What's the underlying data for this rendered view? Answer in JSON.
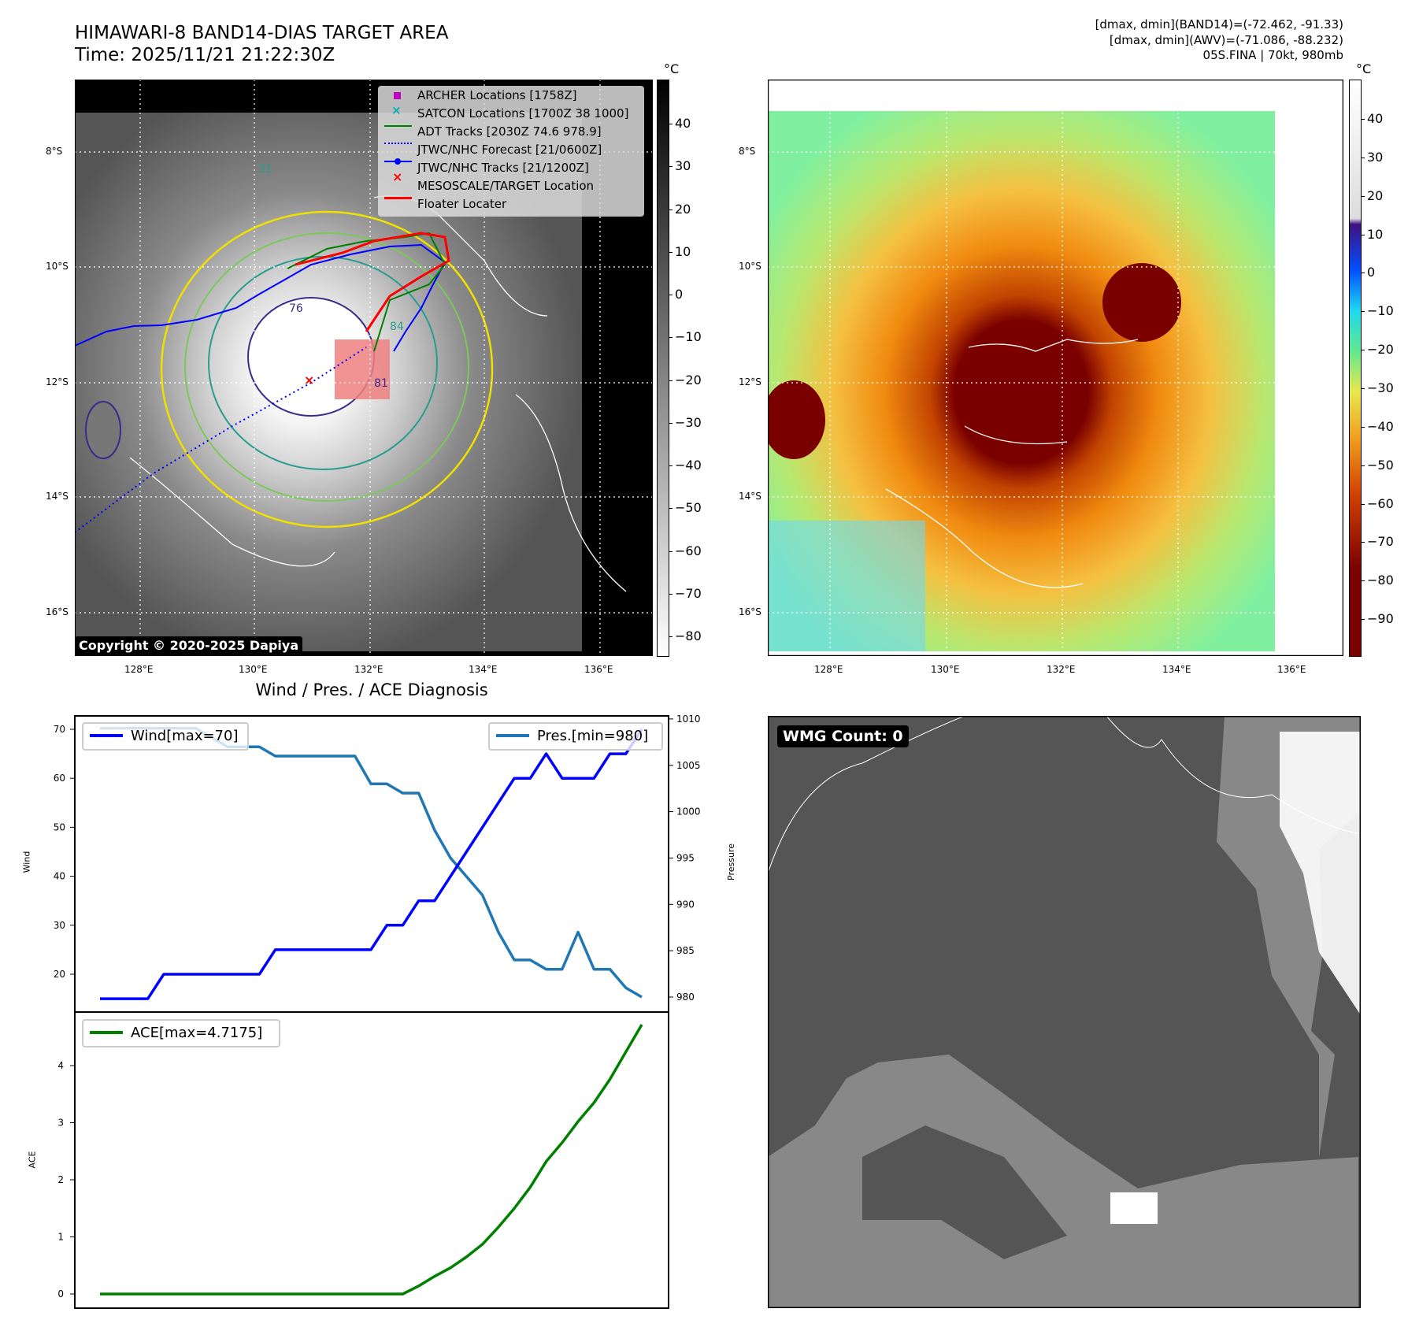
{
  "header": {
    "title": "HIMAWARI-8 BAND14-DIAS TARGET AREA",
    "time": "Time: 2025/11/21 21:22:30Z",
    "info_line1": "[dmax, dmin](BAND14)=(-72.462, -91.33)",
    "info_line2": "[dmax, dmin](AWV)=(-71.086, -88.232)",
    "info_line3": "05S.FINA | 70kt, 980mb"
  },
  "maps": {
    "lat_labels": [
      "8°S",
      "10°S",
      "12°S",
      "14°S",
      "16°S"
    ],
    "lon_labels": [
      "128°E",
      "130°E",
      "132°E",
      "134°E",
      "136°E"
    ],
    "unit": "°C",
    "left_colorbar_ticks": [
      "40",
      "30",
      "20",
      "10",
      "0",
      "−10",
      "−20",
      "−30",
      "−40",
      "−50",
      "−60",
      "−70",
      "−80"
    ],
    "right_colorbar_ticks": [
      "40",
      "30",
      "20",
      "10",
      "0",
      "−10",
      "−20",
      "−30",
      "−40",
      "−50",
      "−60",
      "−70",
      "−80",
      "−90"
    ],
    "copyright": "Copyright © 2020-2025 Dapiya",
    "contour_labels": [
      "76",
      "81",
      "84",
      "31"
    ],
    "legend": [
      {
        "label": "ARCHER Locations [1758Z]",
        "color": "#c000c0",
        "marker": "square"
      },
      {
        "label": "SATCON Locations [1700Z 38 1000]",
        "color": "#00c0c0",
        "marker": "x"
      },
      {
        "label": "ADT Tracks [2030Z 74.6 978.9]",
        "color": "#008000",
        "marker": "line"
      },
      {
        "label": "JTWC/NHC Forecast [21/0600Z]",
        "color": "#0000ff",
        "marker": "dotted"
      },
      {
        "label": "JTWC/NHC Tracks [21/1200Z]",
        "color": "#0000ff",
        "marker": "line-dot"
      },
      {
        "label": "MESOSCALE/TARGET Location",
        "color": "#ff0000",
        "marker": "x"
      },
      {
        "label": "Floater Locater",
        "color": "#ff0000",
        "marker": "line"
      }
    ]
  },
  "wmg": {
    "label": "WMG Count: 0"
  },
  "chart_data": {
    "type": "line",
    "title": "Wind / Pres. / ACE Diagnosis",
    "x": [
      0,
      1,
      2,
      3,
      4,
      5,
      6,
      7,
      8,
      9,
      10,
      11,
      12,
      13,
      14,
      15,
      16,
      17,
      18,
      19,
      20,
      21,
      22,
      23,
      24,
      25,
      26,
      27,
      28,
      29,
      30,
      31,
      32,
      33,
      34
    ],
    "series": [
      {
        "name": "Wind[max=70]",
        "axis": "wind",
        "color": "#0000ff",
        "values": [
          15,
          15,
          15,
          15,
          20,
          20,
          20,
          20,
          20,
          20,
          20,
          25,
          25,
          25,
          25,
          25,
          25,
          25,
          30,
          30,
          35,
          35,
          40,
          45,
          50,
          55,
          60,
          60,
          65,
          60,
          60,
          60,
          65,
          65,
          70
        ]
      },
      {
        "name": "Pres.[min=980]",
        "axis": "pressure",
        "color": "#1f77b4",
        "values": [
          1009,
          1009,
          1009,
          1009,
          1009,
          1009,
          1009,
          1008,
          1007,
          1007,
          1007,
          1006,
          1006,
          1006,
          1006,
          1006,
          1006,
          1003,
          1003,
          1002,
          1002,
          998,
          995,
          993,
          991,
          987,
          984,
          984,
          983,
          983,
          987,
          983,
          983,
          981,
          980
        ]
      },
      {
        "name": "ACE[max=4.7175]",
        "axis": "ace",
        "color": "#008000",
        "values": [
          0,
          0,
          0,
          0,
          0,
          0,
          0,
          0,
          0,
          0,
          0,
          0,
          0,
          0,
          0,
          0,
          0,
          0,
          0,
          0,
          0.14,
          0.31,
          0.46,
          0.65,
          0.87,
          1.17,
          1.5,
          1.87,
          2.32,
          2.65,
          3.02,
          3.35,
          3.76,
          4.24,
          4.7175
        ]
      }
    ],
    "wind_axis": {
      "label": "Wind",
      "ticks": [
        20,
        30,
        40,
        50,
        60,
        70
      ]
    },
    "pressure_axis": {
      "label": "Pressure",
      "ticks": [
        980,
        985,
        990,
        995,
        1000,
        1005,
        1010
      ]
    },
    "ace_axis": {
      "label": "ACE",
      "ticks": [
        0,
        1,
        2,
        3,
        4
      ]
    }
  }
}
